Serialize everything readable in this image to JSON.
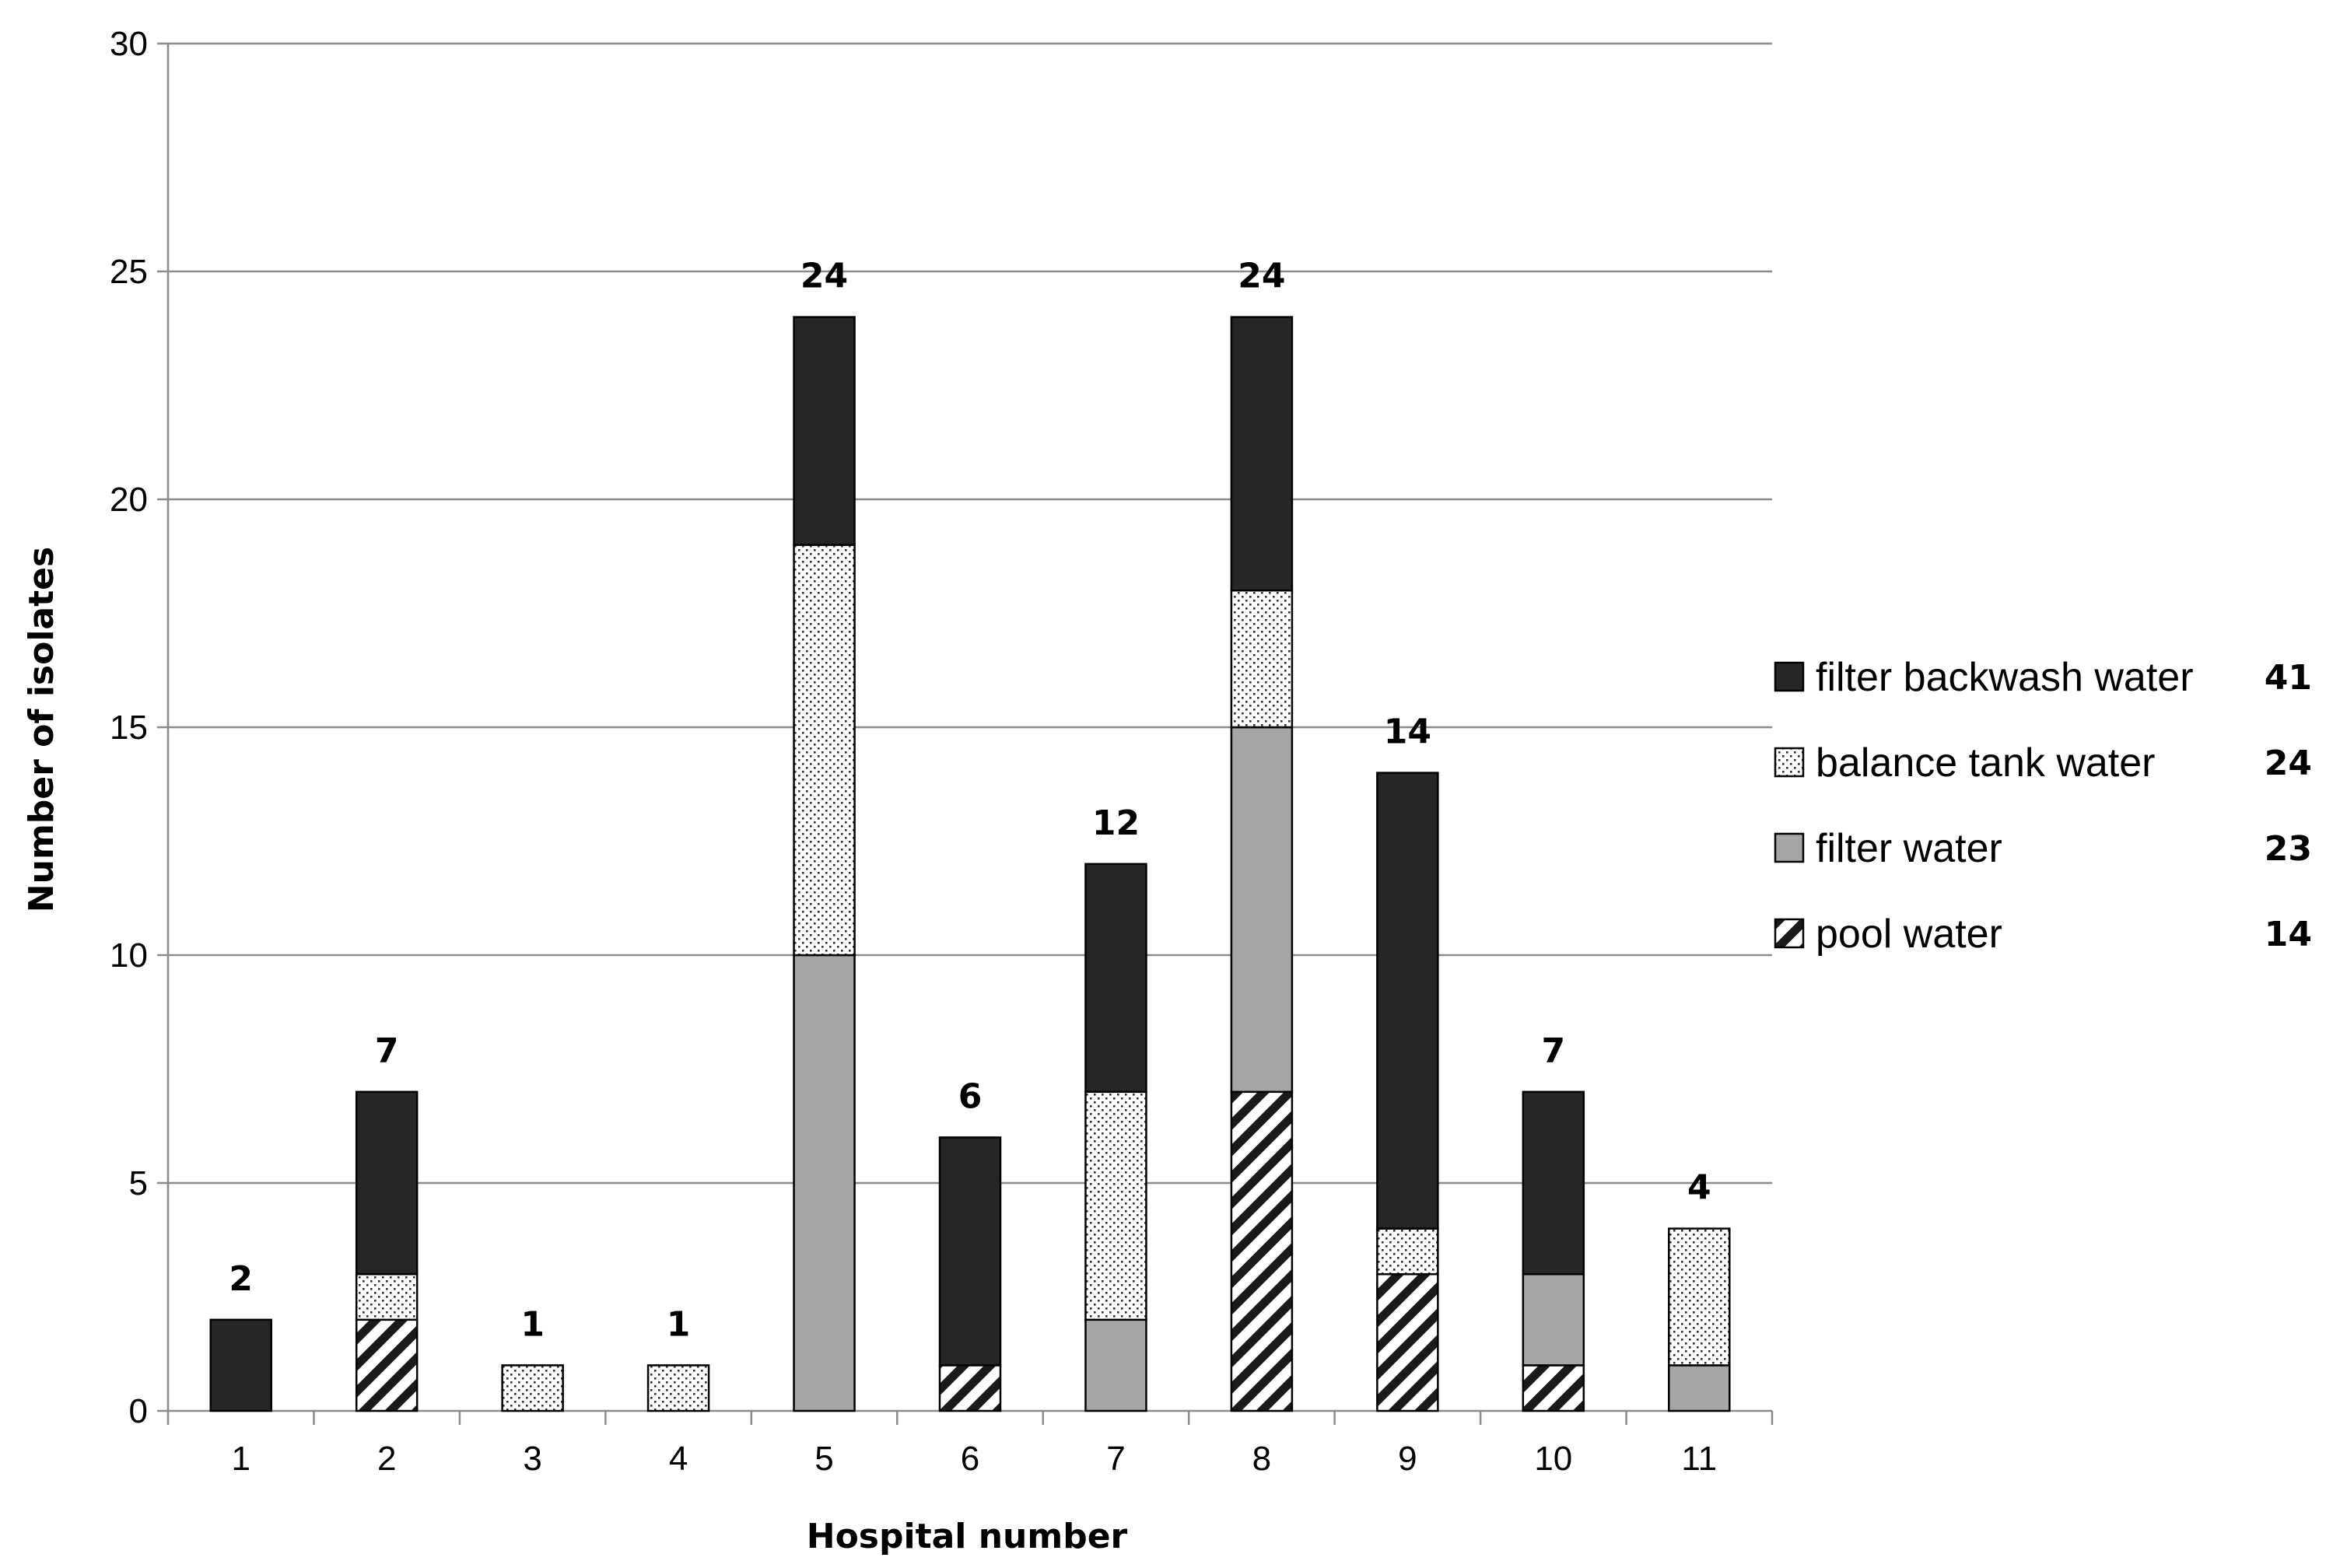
{
  "chart_data": {
    "type": "bar",
    "stacked": true,
    "title": "",
    "xlabel": "Hospital number",
    "ylabel": "Number of isolates",
    "ylim": [
      0,
      30
    ],
    "yticks": [
      0,
      5,
      10,
      15,
      20,
      25,
      30
    ],
    "grid": true,
    "legend_position": "right",
    "categories": [
      "1",
      "2",
      "3",
      "4",
      "5",
      "6",
      "7",
      "8",
      "9",
      "10",
      "11"
    ],
    "series": [
      {
        "name": "pool water",
        "pattern": "diagonal-hatch",
        "color": "#1a1a1a",
        "values": [
          0,
          2,
          0,
          0,
          0,
          1,
          0,
          7,
          3,
          1,
          0
        ]
      },
      {
        "name": "filter water",
        "pattern": "solid",
        "color": "#a6a6a6",
        "values": [
          0,
          0,
          0,
          0,
          10,
          0,
          2,
          8,
          0,
          2,
          1
        ]
      },
      {
        "name": "balance tank water",
        "pattern": "dots",
        "color": "#ffffff",
        "values": [
          0,
          1,
          1,
          1,
          9,
          0,
          5,
          3,
          1,
          0,
          3
        ]
      },
      {
        "name": "filter backwash water",
        "pattern": "solid",
        "color": "#262626",
        "values": [
          2,
          4,
          0,
          0,
          5,
          5,
          5,
          6,
          10,
          4,
          0
        ]
      }
    ],
    "totals": [
      "2",
      "7",
      "1",
      "1",
      "24",
      "6",
      "12",
      "24",
      "14",
      "7",
      "4"
    ],
    "legend": [
      {
        "name": "filter backwash water",
        "count": "41"
      },
      {
        "name": "balance tank water",
        "count": "24"
      },
      {
        "name": "filter water",
        "count": "23"
      },
      {
        "name": "pool water",
        "count": "14"
      }
    ]
  }
}
